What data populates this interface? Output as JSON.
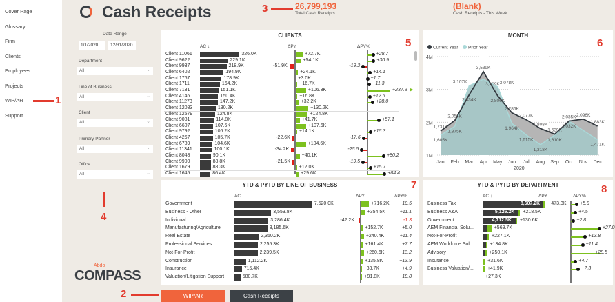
{
  "nav": {
    "items": [
      "Cover Page",
      "Glossary",
      "Firm",
      "Clients",
      "Employees",
      "Projects",
      "WIP/AR",
      "Support"
    ]
  },
  "header": {
    "title": "Cash Receipts",
    "kpi1_value": "26,799,193",
    "kpi1_label": "Total Cash Receipts",
    "kpi2_value": "(Blank)",
    "kpi2_label": "Cash Receipts - This Week"
  },
  "filters": {
    "date_range_label": "Date Range",
    "date_from": "1/1/2020",
    "date_to": "12/31/2020",
    "items": [
      {
        "label": "Department",
        "value": "All"
      },
      {
        "label": "Line of Business",
        "value": "All"
      },
      {
        "label": "Client",
        "value": "All"
      },
      {
        "label": "Primary Partner",
        "value": "All"
      },
      {
        "label": "Office",
        "value": "All"
      }
    ]
  },
  "logo": {
    "small": "Abdo",
    "big": "COMPASS"
  },
  "buttons": {
    "wip": "WIP/AR",
    "cash": "Cash Receipts"
  },
  "annotations": [
    "1",
    "2",
    "3",
    "4",
    "5",
    "6",
    "7",
    "8"
  ],
  "colors": {
    "accent": "#f0643c",
    "positive": "#7dc11f",
    "negative": "#e0201a",
    "dark": "#3a3a3a"
  },
  "clients": {
    "title": "CLIENTS",
    "h_ac": "AC ↓",
    "h_dpy": "ΔPY",
    "h_dpyp": "ΔPY%",
    "rows": [
      [
        "Client 11061",
        326.0,
        "326.0K",
        72.7,
        "+72.7K",
        28.7,
        "+28.7"
      ],
      [
        "Client 9622",
        229.1,
        "229.1K",
        54.1,
        "+54.1K",
        30.9,
        "+30.9"
      ],
      [
        "Client 9937",
        218.9,
        "218.9K",
        -51.9,
        "-51.9K",
        -19.2,
        "-19.2"
      ],
      [
        "Client 6402",
        194.9,
        "194.9K",
        24.1,
        "+24.1K",
        14.1,
        "+14.1"
      ],
      [
        "Client 1767",
        178.9,
        "178.9K",
        3.0,
        "+3.0K",
        1.7,
        "+1.7"
      ],
      [
        "Client 1711",
        164.2,
        "164.2K",
        16.7,
        "+16.7K",
        11.3,
        "+11.3"
      ],
      [
        "Client 7131",
        151.1,
        "151.1K",
        106.3,
        "+106.3K",
        237.3,
        "+237.3"
      ],
      [
        "Client 4146",
        150.4,
        "150.4K",
        16.8,
        "+16.8K",
        12.6,
        "+12.6"
      ],
      [
        "Client 11273",
        147.2,
        "147.2K",
        32.2,
        "+32.2K",
        28.0,
        "+28.0"
      ],
      [
        "Client 12083",
        130.2,
        "130.2K",
        130.2,
        "+130.2K",
        null,
        ""
      ],
      [
        "Client 12579",
        124.8,
        "124.8K",
        124.8,
        "+124.8K",
        null,
        ""
      ],
      [
        "Client 9081",
        114.8,
        "114.8K",
        41.7,
        "+41.7K",
        57.1,
        "+57.1"
      ],
      [
        "Client 6607",
        107.6,
        "107.6K",
        107.6,
        "+107.6K",
        null,
        ""
      ],
      [
        "Client 9792",
        106.2,
        "106.2K",
        14.1,
        "+14.1K",
        15.3,
        "+15.3"
      ],
      [
        "Client 4267",
        105.7,
        "105.7K",
        -22.6,
        "-22.6K",
        -17.6,
        "-17.6"
      ],
      [
        "Client 6789",
        104.6,
        "104.6K",
        104.6,
        "+104.6K",
        null,
        ""
      ],
      [
        "Client 11341",
        100.1,
        "100.1K",
        -34.2,
        "-34.2K",
        -25.5,
        "-25.5"
      ],
      [
        "Client 8048",
        90.1,
        "90.1K",
        40.1,
        "+40.1K",
        80.2,
        "+80.2"
      ],
      [
        "Client 9900",
        88.8,
        "88.8K",
        -21.5,
        "-21.5K",
        -19.5,
        "-19.5"
      ],
      [
        "Client 1679",
        88.3,
        "88.3K",
        12.0,
        "+12.0K",
        15.7,
        "+15.7"
      ],
      [
        "Client 1645",
        86.4,
        "86.4K",
        29.6,
        "+29.6K",
        84.4,
        "+84.4"
      ]
    ]
  },
  "lob": {
    "title": "YTD & PYTD BY LINE OF BUSINESS",
    "h_ac": "AC ↓",
    "h_dpy": "ΔPY",
    "h_dpyp": "ΔPY%",
    "rows": [
      [
        "Government",
        7520.0,
        "7,520.0K",
        716.2,
        "+716.2K",
        "+10.5"
      ],
      [
        "Business - Other",
        3553.8,
        "3,553.8K",
        354.5,
        "+354.5K",
        "+11.1"
      ],
      [
        "Individual",
        3286.4,
        "3,286.4K",
        -42.2,
        "-42.2K",
        "-1.3"
      ],
      [
        "Manufacturing/Agriculture",
        3185.6,
        "3,185.6K",
        152.7,
        "+152.7K",
        "+5.0"
      ],
      [
        "Real Estate",
        2350.2,
        "2,350.2K",
        240.4,
        "+240.4K",
        "+11.4"
      ],
      [
        "Professional Services",
        2255.3,
        "2,255.3K",
        161.4,
        "+161.4K",
        "+7.7"
      ],
      [
        "Not-For-Profit",
        2239.5,
        "2,239.5K",
        260.6,
        "+260.6K",
        "+13.2"
      ],
      [
        "Construction",
        1112.2,
        "1,112.2K",
        135.8,
        "+135.8K",
        "+13.9"
      ],
      [
        "Insurance",
        715.4,
        "715.4K",
        33.7,
        "+33.7K",
        "+4.9"
      ],
      [
        "Valuation/Litigation Support",
        580.7,
        "580.7K",
        91.8,
        "+91.8K",
        "+18.8"
      ]
    ]
  },
  "dept": {
    "title": "YTD & PYTD BY DEPARTMENT",
    "h_ac": "AC ↓",
    "h_dpy": "ΔPY",
    "h_dpyp": "ΔPY%",
    "rows": [
      [
        "Business Tax",
        8607.2,
        "8,607.2K",
        473.3,
        "+473.3K",
        5.8,
        "+5.8"
      ],
      [
        "Business A&A",
        5126.2,
        "5,126.2K",
        218.5,
        "+218.5K",
        4.5,
        "+4.5"
      ],
      [
        "Government",
        4712.5,
        "4,712.5K",
        130.6,
        "+130.6K",
        2.8,
        "+2.8"
      ],
      [
        "AEM Financial Solu...",
        1200,
        "",
        569.7,
        "+569.7K",
        27.0,
        "+27.0"
      ],
      [
        "Not-For-Profit",
        850,
        "",
        227.1,
        "+227.1K",
        13.8,
        "+13.8"
      ],
      [
        "AEM Workforce Sol...",
        620,
        "",
        134.8,
        "+134.8K",
        11.4,
        "+11.4"
      ],
      [
        "Advisory",
        520,
        "",
        250.1,
        "+250.1K",
        28.5,
        "+28.5"
      ],
      [
        "Insurance",
        300,
        "",
        31.6,
        "+31.6K",
        4.7,
        "+4.7"
      ],
      [
        "Business Valuation/...",
        280,
        "",
        41.9,
        "+41.9K",
        7.3,
        "+7.3"
      ],
      [
        "",
        0,
        "",
        27.3,
        "+27.3K",
        null,
        ""
      ]
    ]
  },
  "chart_data": {
    "type": "area",
    "title": "MONTH",
    "xlabel": "2020",
    "ylabel": "",
    "categories": [
      "Jan",
      "Feb",
      "Mar",
      "Apr",
      "May",
      "Jun",
      "Jul",
      "Aug",
      "Sep",
      "Oct",
      "Nov",
      "Dec"
    ],
    "ylim": [
      1000,
      4000
    ],
    "yticks": [
      "1M",
      "2M",
      "3M",
      "4M"
    ],
    "legend": "top-left",
    "series": [
      {
        "name": "Current Year",
        "color": "#333a40",
        "values": [
          1731,
          2056,
          2834,
          3539,
          2806,
          2286,
          2077,
          1808,
          1639,
          2035,
          2096,
          1883
        ],
        "labels": [
          "1,731K",
          "2,056K",
          "2,834K",
          "3,539K",
          "2,806K",
          "2,286K",
          "2,077K",
          "1,808K",
          "1,639K",
          "2,035K",
          "2,096K",
          "1,883K"
        ]
      },
      {
        "name": "Prior Year",
        "color": "#a9d8d8",
        "values": [
          1605,
          1875,
          3107,
          3309,
          3078,
          1964,
          1615,
          1318,
          1610,
          2032,
          1750,
          1471
        ],
        "labels": [
          "1,605K",
          "1,875K",
          "3,107K",
          "3,309K",
          "3,078K",
          "1,964K",
          "1,615K",
          "1,318K",
          "1,610K",
          "2,032K",
          "",
          "1,471K"
        ]
      }
    ]
  }
}
